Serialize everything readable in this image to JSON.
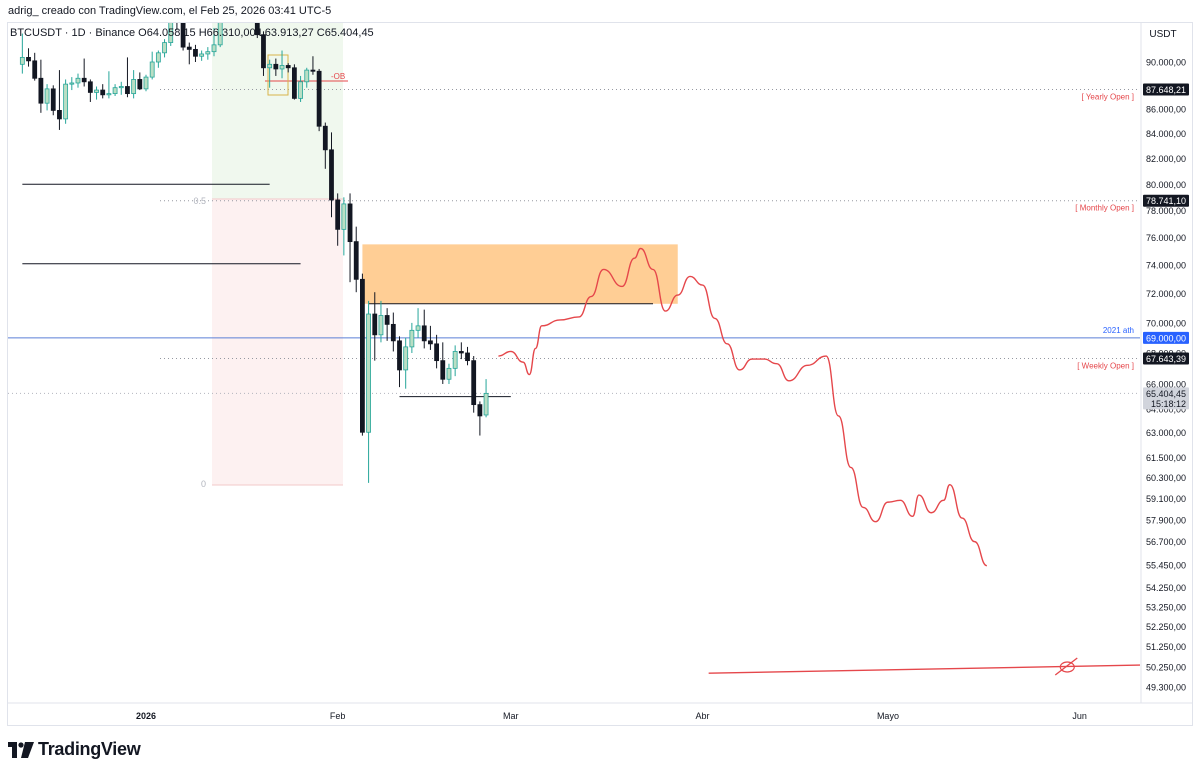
{
  "header": {
    "text": "adrig_ creado con TradingView.com, el Feb 25, 2026 03:41 UTC-5"
  },
  "footer": {
    "brand": "TradingView",
    "logo_icon": "tradingview-logo-icon"
  },
  "legend": {
    "symbol": "BTCUSDT · 1D · Binance",
    "open": "O64.058,15",
    "high": "H66.310,00",
    "low": "L63.913,27",
    "close": "C65.404,45"
  },
  "colors": {
    "up": "#26a69a",
    "up_fill": "#b9dec4",
    "down": "#131722",
    "drawing": "#e5474b",
    "ob_zone": "#ffc98a",
    "blue_line": "#2962ff"
  },
  "chart_data": {
    "type": "candlestick",
    "currency": "USDT",
    "y_ticks": [
      "90.000,00",
      "86.000,00",
      "84.000,00",
      "82.000,00",
      "80.000,00",
      "78.000,00",
      "76.000,00",
      "74.000,00",
      "72.000,00",
      "70.000,00",
      "66.000,00",
      "63.000,00",
      "61.500,00",
      "60.300,00",
      "59.100,00",
      "57.900,00",
      "56.700,00",
      "55.450,00",
      "54.250,00",
      "53.250,00",
      "52.250,00",
      "51.250,00",
      "50.250,00",
      "49.300,00"
    ],
    "y_ticks_partial": [
      "87.000,00",
      "68.000,00",
      "64.000,00"
    ],
    "x_ticks": [
      {
        "label": "2026",
        "bold": true,
        "date": "2026-01-01"
      },
      {
        "label": "Feb",
        "bold": false,
        "date": "2026-02-01"
      },
      {
        "label": "Mar",
        "bold": false,
        "date": "2026-03-01"
      },
      {
        "label": "Abr",
        "bold": false,
        "date": "2026-04-01"
      },
      {
        "label": "Mayo",
        "bold": false,
        "date": "2026-05-01"
      },
      {
        "label": "Jun",
        "bold": false,
        "date": "2026-06-01"
      }
    ],
    "price_labels": [
      {
        "name": "yearly-open",
        "value": 87648.21,
        "label": "87.648,21",
        "text": "[ Yearly Open ]",
        "style": "dark"
      },
      {
        "name": "monthly-open",
        "value": 78741.1,
        "label": "78.741,10",
        "text": "[ Monthly Open ]",
        "style": "dark"
      },
      {
        "name": "ath-2021",
        "value": 69000.0,
        "label": "69.000,00",
        "text": "2021 ath",
        "style": "blue"
      },
      {
        "name": "weekly-open",
        "value": 67643.39,
        "label": "67.643,39",
        "text": "[ Weekly Open ]",
        "style": "dark"
      }
    ],
    "last_price": {
      "value": 65404.45,
      "label": "65.404,45",
      "countdown": "15:18:12"
    },
    "fib_labels": [
      {
        "level": "0.5",
        "value": 78800
      },
      {
        "level": "0",
        "value": 60000
      }
    ],
    "ob_label": "-OB",
    "ob_zone": {
      "from_date": "2026-02-05",
      "to_date": "2026-03-28",
      "high": 75500,
      "low": 71300
    },
    "candles": [
      {
        "d": "2025-12-12",
        "o": 89800,
        "h": 92500,
        "l": 89000,
        "c": 90400
      },
      {
        "d": "2025-12-13",
        "o": 90400,
        "h": 91200,
        "l": 89600,
        "c": 90100
      },
      {
        "d": "2025-12-14",
        "o": 90100,
        "h": 90800,
        "l": 88400,
        "c": 88600
      },
      {
        "d": "2025-12-15",
        "o": 88600,
        "h": 90200,
        "l": 85700,
        "c": 86500
      },
      {
        "d": "2025-12-16",
        "o": 86500,
        "h": 88100,
        "l": 85900,
        "c": 87700
      },
      {
        "d": "2025-12-17",
        "o": 87700,
        "h": 88000,
        "l": 85500,
        "c": 85900
      },
      {
        "d": "2025-12-18",
        "o": 85900,
        "h": 89300,
        "l": 84300,
        "c": 85200
      },
      {
        "d": "2025-12-19",
        "o": 85200,
        "h": 88500,
        "l": 84800,
        "c": 88100
      },
      {
        "d": "2025-12-20",
        "o": 88100,
        "h": 88700,
        "l": 87600,
        "c": 88200
      },
      {
        "d": "2025-12-21",
        "o": 88200,
        "h": 89000,
        "l": 87800,
        "c": 88600
      },
      {
        "d": "2025-12-22",
        "o": 88600,
        "h": 90300,
        "l": 87900,
        "c": 88300
      },
      {
        "d": "2025-12-23",
        "o": 88300,
        "h": 88500,
        "l": 86600,
        "c": 87400
      },
      {
        "d": "2025-12-24",
        "o": 87400,
        "h": 87900,
        "l": 86800,
        "c": 87600
      },
      {
        "d": "2025-12-25",
        "o": 87600,
        "h": 88100,
        "l": 86900,
        "c": 87200
      },
      {
        "d": "2025-12-26",
        "o": 87200,
        "h": 89200,
        "l": 86900,
        "c": 87300
      },
      {
        "d": "2025-12-27",
        "o": 87300,
        "h": 88100,
        "l": 87100,
        "c": 87800
      },
      {
        "d": "2025-12-28",
        "o": 87800,
        "h": 88300,
        "l": 87200,
        "c": 87900
      },
      {
        "d": "2025-12-29",
        "o": 87900,
        "h": 90400,
        "l": 87000,
        "c": 87300
      },
      {
        "d": "2025-12-30",
        "o": 87300,
        "h": 89300,
        "l": 86900,
        "c": 88500
      },
      {
        "d": "2025-12-31",
        "o": 88500,
        "h": 89100,
        "l": 87600,
        "c": 87700
      },
      {
        "d": "2026-01-01",
        "o": 87700,
        "h": 88900,
        "l": 87500,
        "c": 88700
      },
      {
        "d": "2026-01-02",
        "o": 88700,
        "h": 90900,
        "l": 88500,
        "c": 90000
      },
      {
        "d": "2026-01-03",
        "o": 90000,
        "h": 91000,
        "l": 89500,
        "c": 90800
      },
      {
        "d": "2026-01-04",
        "o": 90800,
        "h": 92000,
        "l": 90400,
        "c": 91700
      },
      {
        "d": "2026-01-05",
        "o": 91700,
        "h": 94200,
        "l": 91400,
        "c": 93900
      },
      {
        "d": "2026-01-06",
        "o": 93900,
        "h": 94400,
        "l": 92800,
        "c": 93600
      },
      {
        "d": "2026-01-07",
        "o": 93600,
        "h": 94200,
        "l": 91000,
        "c": 91300
      },
      {
        "d": "2026-01-08",
        "o": 91300,
        "h": 91700,
        "l": 89800,
        "c": 91100
      },
      {
        "d": "2026-01-09",
        "o": 91100,
        "h": 91500,
        "l": 90000,
        "c": 90500
      },
      {
        "d": "2026-01-10",
        "o": 90500,
        "h": 91000,
        "l": 90100,
        "c": 90700
      },
      {
        "d": "2026-01-11",
        "o": 90700,
        "h": 91300,
        "l": 90200,
        "c": 90900
      },
      {
        "d": "2026-01-12",
        "o": 90900,
        "h": 93000,
        "l": 90500,
        "c": 91500
      },
      {
        "d": "2026-01-13",
        "o": 91500,
        "h": 95000,
        "l": 91300,
        "c": 94900
      },
      {
        "d": "2026-01-14",
        "o": 94900,
        "h": 97500,
        "l": 94600,
        "c": 96900
      },
      {
        "d": "2026-01-15",
        "o": 96900,
        "h": 97200,
        "l": 94900,
        "c": 95300
      },
      {
        "d": "2026-01-16",
        "o": 95300,
        "h": 95900,
        "l": 94500,
        "c": 95200
      },
      {
        "d": "2026-01-17",
        "o": 95200,
        "h": 95600,
        "l": 94800,
        "c": 95300
      },
      {
        "d": "2026-01-18",
        "o": 95300,
        "h": 95500,
        "l": 94700,
        "c": 94900
      },
      {
        "d": "2026-01-19",
        "o": 94900,
        "h": 95100,
        "l": 92100,
        "c": 92400
      },
      {
        "d": "2026-01-20",
        "o": 92400,
        "h": 92700,
        "l": 88800,
        "c": 89500
      },
      {
        "d": "2026-01-21",
        "o": 89500,
        "h": 90200,
        "l": 87800,
        "c": 89800
      },
      {
        "d": "2026-01-22",
        "o": 89800,
        "h": 90300,
        "l": 88800,
        "c": 89400
      },
      {
        "d": "2026-01-23",
        "o": 89400,
        "h": 91000,
        "l": 88600,
        "c": 89700
      },
      {
        "d": "2026-01-24",
        "o": 89700,
        "h": 89900,
        "l": 89100,
        "c": 89500
      },
      {
        "d": "2026-01-25",
        "o": 89500,
        "h": 89800,
        "l": 86800,
        "c": 86900
      },
      {
        "d": "2026-01-26",
        "o": 86900,
        "h": 88800,
        "l": 86600,
        "c": 88300
      },
      {
        "d": "2026-01-27",
        "o": 88300,
        "h": 89500,
        "l": 87800,
        "c": 89300
      },
      {
        "d": "2026-01-28",
        "o": 89300,
        "h": 90500,
        "l": 88900,
        "c": 89200
      },
      {
        "d": "2026-01-29",
        "o": 89200,
        "h": 89400,
        "l": 84200,
        "c": 84600
      },
      {
        "d": "2026-01-30",
        "o": 84600,
        "h": 84900,
        "l": 81200,
        "c": 82700
      },
      {
        "d": "2026-01-31",
        "o": 82700,
        "h": 84100,
        "l": 77500,
        "c": 78800
      },
      {
        "d": "2026-02-01",
        "o": 78800,
        "h": 79300,
        "l": 75400,
        "c": 76600
      },
      {
        "d": "2026-02-02",
        "o": 76600,
        "h": 79000,
        "l": 74700,
        "c": 78500
      },
      {
        "d": "2026-02-03",
        "o": 78500,
        "h": 79300,
        "l": 72800,
        "c": 75700
      },
      {
        "d": "2026-02-04",
        "o": 75700,
        "h": 76800,
        "l": 72100,
        "c": 73000
      },
      {
        "d": "2026-02-05",
        "o": 73000,
        "h": 73400,
        "l": 62800,
        "c": 63000
      },
      {
        "d": "2026-02-06",
        "o": 63000,
        "h": 71500,
        "l": 60000,
        "c": 70600
      },
      {
        "d": "2026-02-07",
        "o": 70600,
        "h": 72100,
        "l": 67500,
        "c": 69200
      },
      {
        "d": "2026-02-08",
        "o": 69200,
        "h": 71500,
        "l": 68700,
        "c": 70500
      },
      {
        "d": "2026-02-09",
        "o": 70500,
        "h": 71000,
        "l": 68800,
        "c": 69900
      },
      {
        "d": "2026-02-10",
        "o": 69900,
        "h": 70700,
        "l": 68100,
        "c": 68800
      },
      {
        "d": "2026-02-11",
        "o": 68800,
        "h": 69100,
        "l": 65800,
        "c": 66900
      },
      {
        "d": "2026-02-12",
        "o": 66900,
        "h": 69000,
        "l": 65700,
        "c": 68400
      },
      {
        "d": "2026-02-13",
        "o": 68400,
        "h": 70000,
        "l": 68000,
        "c": 69500
      },
      {
        "d": "2026-02-14",
        "o": 69500,
        "h": 71000,
        "l": 69000,
        "c": 69800
      },
      {
        "d": "2026-02-15",
        "o": 69800,
        "h": 70900,
        "l": 68300,
        "c": 68800
      },
      {
        "d": "2026-02-16",
        "o": 68800,
        "h": 69800,
        "l": 68200,
        "c": 68600
      },
      {
        "d": "2026-02-17",
        "o": 68600,
        "h": 69200,
        "l": 67000,
        "c": 67500
      },
      {
        "d": "2026-02-18",
        "o": 67500,
        "h": 68700,
        "l": 66000,
        "c": 66300
      },
      {
        "d": "2026-02-19",
        "o": 66300,
        "h": 67300,
        "l": 66000,
        "c": 67000
      },
      {
        "d": "2026-02-20",
        "o": 67000,
        "h": 68500,
        "l": 66500,
        "c": 68100
      },
      {
        "d": "2026-02-21",
        "o": 68100,
        "h": 68700,
        "l": 67600,
        "c": 68000
      },
      {
        "d": "2026-02-22",
        "o": 68000,
        "h": 68400,
        "l": 67200,
        "c": 67500
      },
      {
        "d": "2026-02-23",
        "o": 67500,
        "h": 67800,
        "l": 64200,
        "c": 64700
      },
      {
        "d": "2026-02-24",
        "o": 64700,
        "h": 64900,
        "l": 62800,
        "c": 64000
      },
      {
        "d": "2026-02-25",
        "o": 64058.15,
        "h": 66310.0,
        "l": 63913.27,
        "c": 65404.45
      }
    ],
    "horizontal_rays": [
      {
        "name": "high-ray-1",
        "value": 80000,
        "from_date": "2025-12-12",
        "to_date": "2026-01-21"
      },
      {
        "name": "high-ray-2",
        "value": 74100,
        "from_date": "2025-12-12",
        "to_date": "2026-01-26"
      },
      {
        "name": "ob-low-ray",
        "value": 71300,
        "from_date": "2026-02-06",
        "to_date": "2026-03-24"
      },
      {
        "name": "range-low-ray",
        "value": 65200,
        "from_date": "2026-02-11",
        "to_date": "2026-03-01"
      }
    ],
    "projection_path": [
      {
        "d": "2026-02-27",
        "v": 67800
      },
      {
        "d": "2026-03-01",
        "v": 68100
      },
      {
        "d": "2026-03-03",
        "v": 67400
      },
      {
        "d": "2026-03-04",
        "v": 66600
      },
      {
        "d": "2026-03-05",
        "v": 68300
      },
      {
        "d": "2026-03-06",
        "v": 69800
      },
      {
        "d": "2026-03-09",
        "v": 70200
      },
      {
        "d": "2026-03-12",
        "v": 70400
      },
      {
        "d": "2026-03-14",
        "v": 71800
      },
      {
        "d": "2026-03-16",
        "v": 73700
      },
      {
        "d": "2026-03-19",
        "v": 72500
      },
      {
        "d": "2026-03-21",
        "v": 74500
      },
      {
        "d": "2026-03-22",
        "v": 75200
      },
      {
        "d": "2026-03-24",
        "v": 73700
      },
      {
        "d": "2026-03-26",
        "v": 70800
      },
      {
        "d": "2026-03-28",
        "v": 71900
      },
      {
        "d": "2026-03-30",
        "v": 73200
      },
      {
        "d": "2026-04-01",
        "v": 72600
      },
      {
        "d": "2026-04-03",
        "v": 70300
      },
      {
        "d": "2026-04-05",
        "v": 68600
      },
      {
        "d": "2026-04-07",
        "v": 66900
      },
      {
        "d": "2026-04-09",
        "v": 67600
      },
      {
        "d": "2026-04-11",
        "v": 67600
      },
      {
        "d": "2026-04-13",
        "v": 67300
      },
      {
        "d": "2026-04-15",
        "v": 66200
      },
      {
        "d": "2026-04-18",
        "v": 67200
      },
      {
        "d": "2026-04-21",
        "v": 67800
      },
      {
        "d": "2026-04-23",
        "v": 64000
      },
      {
        "d": "2026-04-25",
        "v": 60900
      },
      {
        "d": "2026-04-27",
        "v": 58600
      },
      {
        "d": "2026-04-29",
        "v": 57800
      },
      {
        "d": "2026-05-01",
        "v": 58900
      },
      {
        "d": "2026-05-03",
        "v": 59000
      },
      {
        "d": "2026-05-05",
        "v": 58100
      },
      {
        "d": "2026-05-06",
        "v": 59300
      },
      {
        "d": "2026-05-08",
        "v": 58300
      },
      {
        "d": "2026-05-10",
        "v": 59000
      },
      {
        "d": "2026-05-11",
        "v": 59900
      },
      {
        "d": "2026-05-13",
        "v": 58000
      },
      {
        "d": "2026-05-15",
        "v": 56700
      },
      {
        "d": "2026-05-17",
        "v": 55400
      }
    ],
    "target_line": {
      "from": {
        "d": "2026-04-02",
        "v": 49950
      },
      "to": {
        "d": "2026-06-12",
        "v": 50350
      }
    },
    "cross_mark": {
      "d": "2026-05-30",
      "v": 50250
    }
  }
}
